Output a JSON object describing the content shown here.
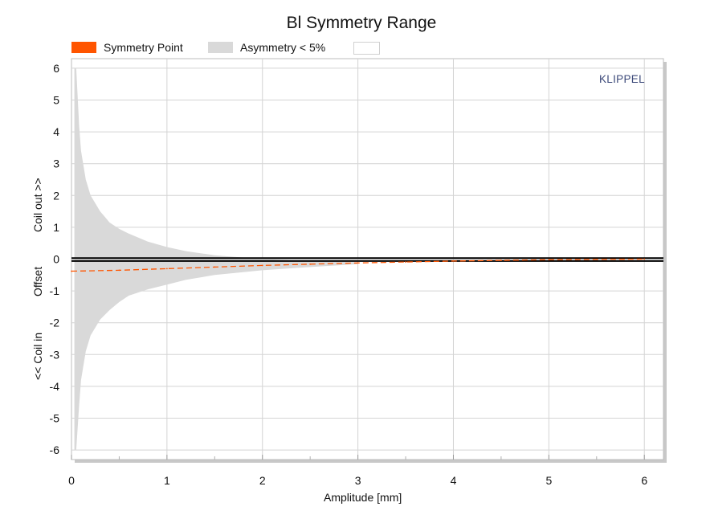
{
  "chart_data": {
    "type": "area",
    "title": "Bl Symmetry Range",
    "xlabel": "Amplitude [mm]",
    "ylabel_parts": [
      "Coil out >>",
      "Offset",
      "<< Coil in"
    ],
    "xlim": [
      0,
      6.2
    ],
    "ylim": [
      -6.3,
      6.3
    ],
    "xticks": [
      0,
      1,
      2,
      3,
      4,
      5,
      6
    ],
    "yticks": [
      6,
      5,
      4,
      3,
      2,
      1,
      0,
      -1,
      -2,
      -3,
      -4,
      -5,
      -6
    ],
    "grid": true,
    "legend": {
      "placement": "top",
      "entries": [
        {
          "label": "Symmetry Point",
          "color": "#ff5500"
        },
        {
          "label": "Asymmetry < 5%",
          "color": "#d9d9d9"
        },
        {
          "label": "",
          "color": "#ffffff"
        }
      ]
    },
    "series": [
      {
        "name": "Symmetry Point",
        "color": "#ff5500",
        "style": "dashed",
        "x": [
          0.0,
          0.5,
          1.0,
          1.5,
          2.0,
          2.5,
          3.0,
          3.5,
          4.0,
          4.5,
          5.0,
          5.5,
          6.0
        ],
        "y": [
          -0.38,
          -0.35,
          -0.3,
          -0.25,
          -0.2,
          -0.16,
          -0.12,
          -0.09,
          -0.06,
          -0.04,
          -0.02,
          -0.01,
          0.0
        ]
      },
      {
        "name": "Asymmetry < 5%",
        "color": "#d9d9d9",
        "x": [
          0.03,
          0.05,
          0.08,
          0.1,
          0.15,
          0.2,
          0.3,
          0.4,
          0.5,
          0.6,
          0.8,
          1.0,
          1.2,
          1.5,
          2.0,
          2.5,
          3.0
        ],
        "upper": [
          6.0,
          6.0,
          4.2,
          3.4,
          2.5,
          2.0,
          1.5,
          1.15,
          0.95,
          0.8,
          0.55,
          0.38,
          0.25,
          0.12,
          0.0,
          -0.06,
          -0.1
        ],
        "lower": [
          -6.0,
          -6.0,
          -4.6,
          -3.8,
          -2.9,
          -2.4,
          -1.9,
          -1.6,
          -1.35,
          -1.15,
          -0.95,
          -0.8,
          -0.65,
          -0.5,
          -0.35,
          -0.25,
          -0.16
        ]
      },
      {
        "name": "",
        "color": "#000000",
        "style": "solid",
        "x": [
          0,
          6.2
        ],
        "y": [
          0.03,
          0.03
        ]
      },
      {
        "name": "",
        "color": "#000000",
        "style": "solid",
        "x": [
          0,
          6.2
        ],
        "y": [
          -0.06,
          -0.06
        ]
      }
    ],
    "watermark": "KLIPPEL"
  }
}
